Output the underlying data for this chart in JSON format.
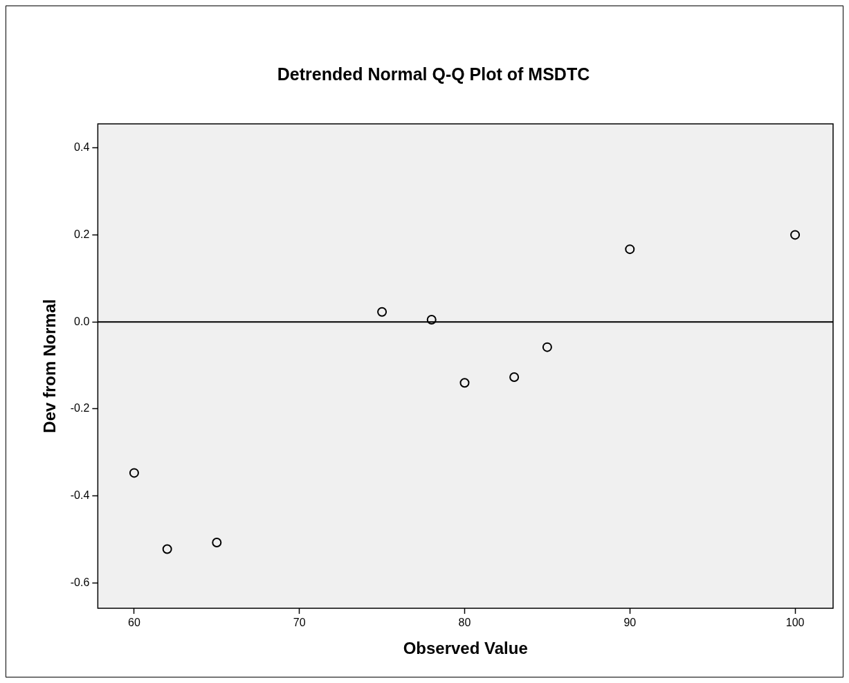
{
  "chart_data": {
    "type": "scatter",
    "title": "Detrended Normal Q-Q Plot of MSDTC",
    "xlabel": "Observed Value",
    "ylabel": "Dev from Normal",
    "series": [
      {
        "color": "#000000",
        "x": [
          60,
          62,
          65,
          75,
          78,
          80,
          83,
          85,
          90,
          100
        ],
        "values": [
          -0.347,
          -0.522,
          -0.507,
          0.023,
          0.005,
          -0.14,
          -0.127,
          -0.058,
          0.167,
          0.2
        ]
      }
    ],
    "xlim": [
      57.8,
      102.3
    ],
    "xticks": [
      60,
      70,
      80,
      90,
      100
    ],
    "ylim": [
      -0.658,
      0.455
    ],
    "yticks": [
      {
        "value": -0.6,
        "label": "-0.6"
      },
      {
        "value": -0.4,
        "label": "-0.4"
      },
      {
        "value": -0.2,
        "label": "-0.2"
      },
      {
        "value": 0,
        "label": "0.0"
      },
      {
        "value": 0.2,
        "label": "0.2"
      },
      {
        "value": 0.4,
        "label": "0.4"
      }
    ],
    "ref_lines": [
      {
        "axis": "y",
        "value": 0,
        "color": "#000000"
      }
    ],
    "grid": false,
    "legend": false,
    "marker": "circle"
  }
}
